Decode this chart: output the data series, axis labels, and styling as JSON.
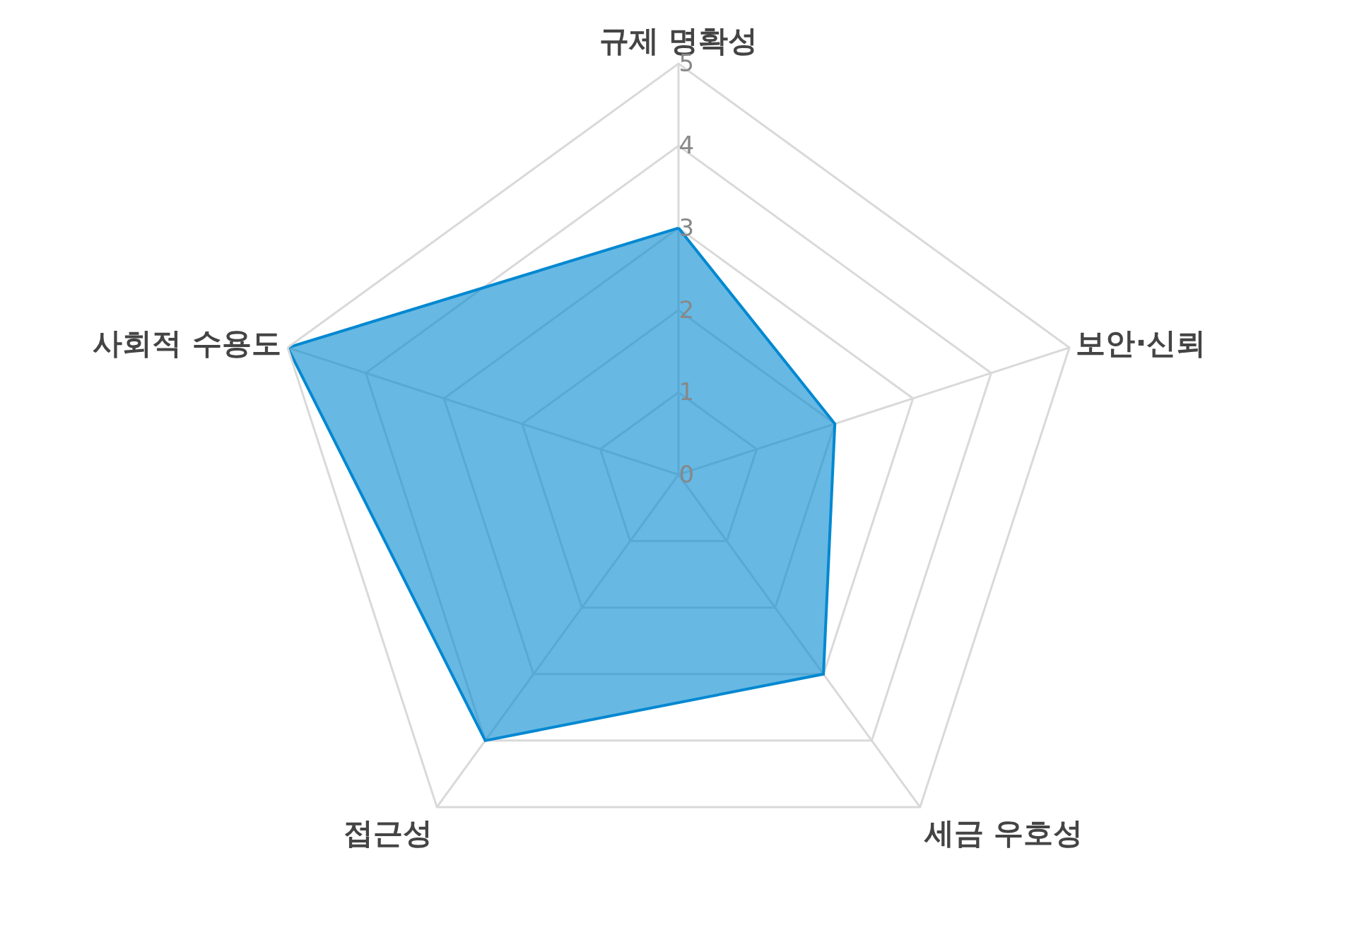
{
  "chart_data": {
    "type": "radar",
    "categories": [
      "규제 명확성",
      "보안·신뢰",
      "세금 우호성",
      "접근성",
      "사회적 수용도"
    ],
    "series": [
      {
        "color": "#0288d1",
        "values": [
          3,
          2,
          3,
          4,
          5
        ]
      }
    ],
    "ylim": [
      0,
      5
    ],
    "yticks": [
      0,
      1,
      2,
      3,
      4,
      5
    ],
    "grid": true,
    "marker": "none"
  }
}
